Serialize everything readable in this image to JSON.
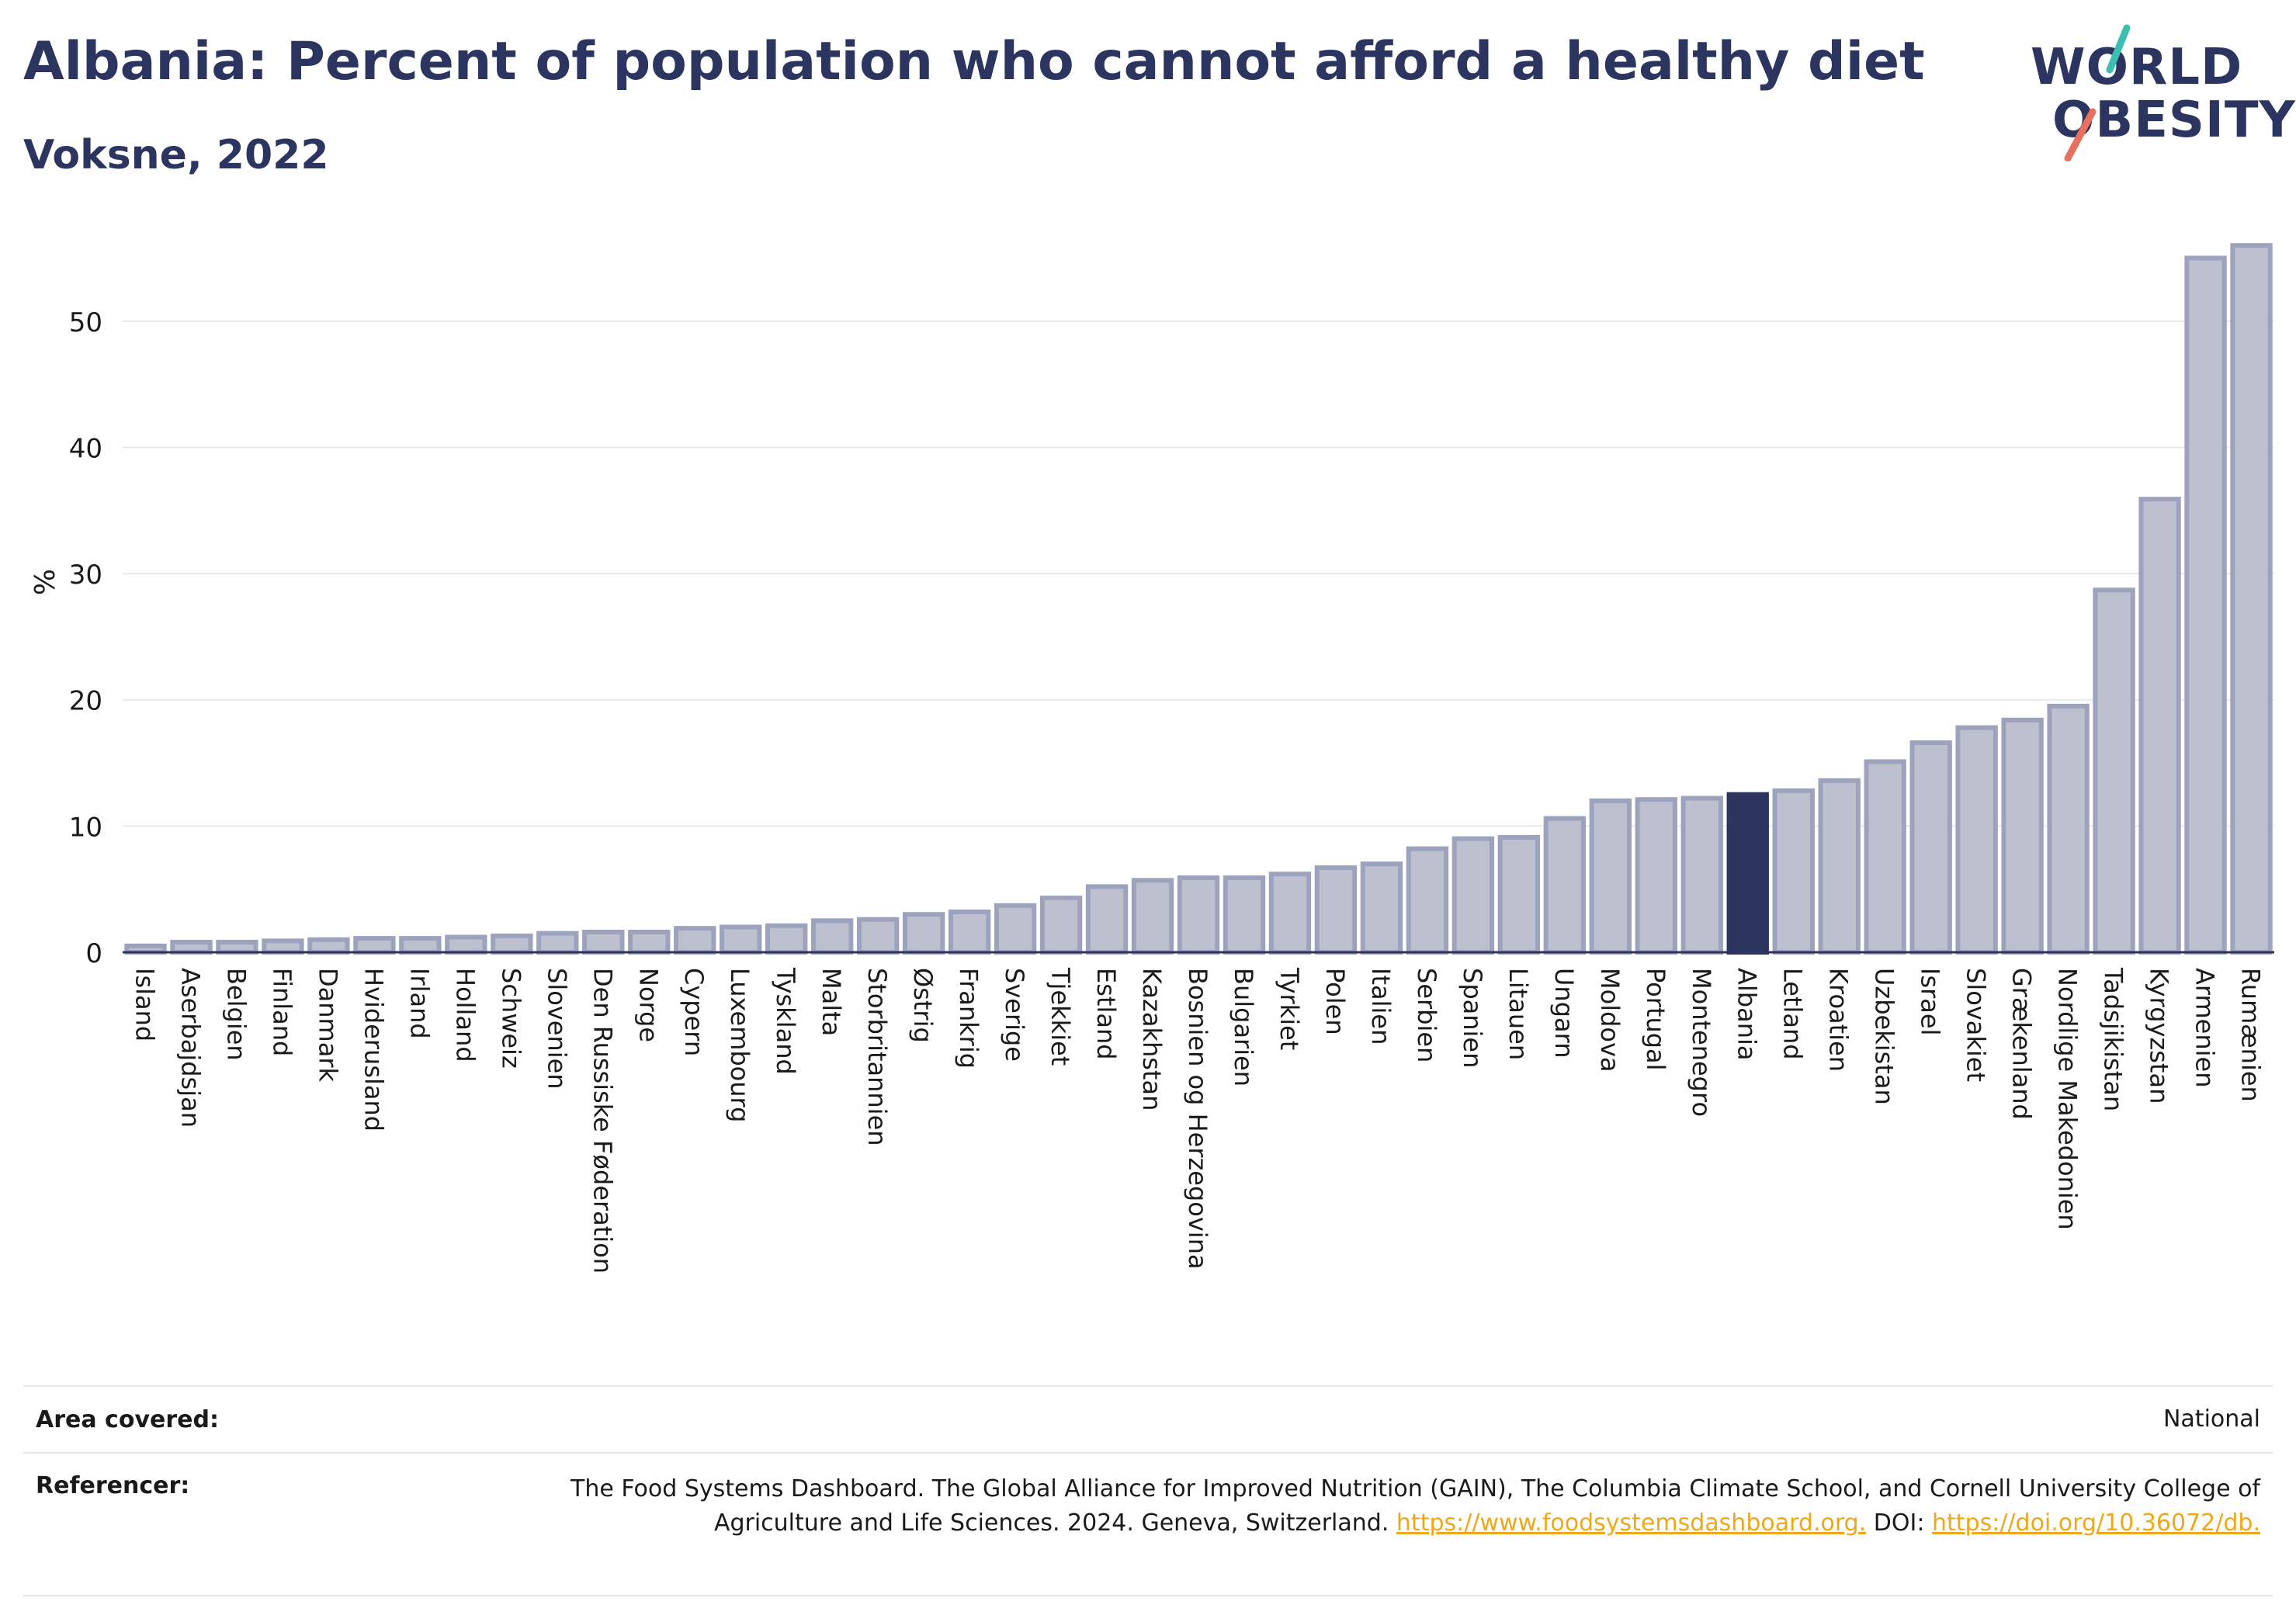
{
  "header": {
    "title": "Albania: Percent of population who cannot afford a healthy diet",
    "subtitle": "Voksne, 2022"
  },
  "logo": {
    "line1": "WORLD",
    "line2": "OBESITY",
    "accent_teal": "#3bbfb0",
    "accent_coral": "#e8705f"
  },
  "colors": {
    "bar": "#bdc1cf",
    "bar_stroke": "#9ea3bd",
    "highlight": "#2b3560",
    "grid": "#e6e8f0",
    "axis": "#2b3560"
  },
  "chart_data": {
    "type": "bar",
    "ylabel": "%",
    "ylim": [
      0,
      57
    ],
    "yticks": [
      0,
      10,
      20,
      30,
      40,
      50
    ],
    "grid": true,
    "highlight": "Albania",
    "categories": [
      "Island",
      "Aserbajdsjan",
      "Belgien",
      "Finland",
      "Danmark",
      "Hviderusland",
      "Irland",
      "Holland",
      "Schweiz",
      "Slovenien",
      "Den Russiske Føderation",
      "Norge",
      "Cypern",
      "Luxembourg",
      "Tyskland",
      "Malta",
      "Storbritannien",
      "Østrig",
      "Frankrig",
      "Sverige",
      "Tjekkiet",
      "Estland",
      "Kazakhstan",
      "Bosnien og Herzegovina",
      "Bulgarien",
      "Tyrkiet",
      "Polen",
      "Italien",
      "Serbien",
      "Spanien",
      "Litauen",
      "Ungarn",
      "Moldova",
      "Portugal",
      "Montenegro",
      "Albania",
      "Letland",
      "Kroatien",
      "Uzbekistan",
      "Israel",
      "Slovakiet",
      "Grækenland",
      "Nordlige Makedonien",
      "Tadsjikistan",
      "Kyrgyzstan",
      "Armenien",
      "Rumænien"
    ],
    "values": [
      0.5,
      0.8,
      0.8,
      0.9,
      1.0,
      1.1,
      1.1,
      1.2,
      1.3,
      1.5,
      1.6,
      1.6,
      1.9,
      2.0,
      2.1,
      2.5,
      2.6,
      3.0,
      3.2,
      3.7,
      4.3,
      5.2,
      5.7,
      5.9,
      5.9,
      6.2,
      6.7,
      7.0,
      8.2,
      9.0,
      9.1,
      10.6,
      12.0,
      12.1,
      12.2,
      12.5,
      12.8,
      13.6,
      15.1,
      16.6,
      17.8,
      18.4,
      19.5,
      28.7,
      35.9,
      55.0,
      56.0
    ]
  },
  "footer": {
    "area_label": "Area covered:",
    "area_value": "National",
    "ref_label": "Referencer:",
    "ref_text": "The Food Systems Dashboard. The Global Alliance for Improved Nutrition (GAIN), The Columbia Climate School, and Cornell University College of Agriculture and Life Sciences. 2024. Geneva, Switzerland.",
    "ref_link1": "https://www.foodsystemsdashboard.org.",
    "ref_doi_label": "DOI:",
    "ref_link2": "https://doi.org/10.36072/db."
  }
}
